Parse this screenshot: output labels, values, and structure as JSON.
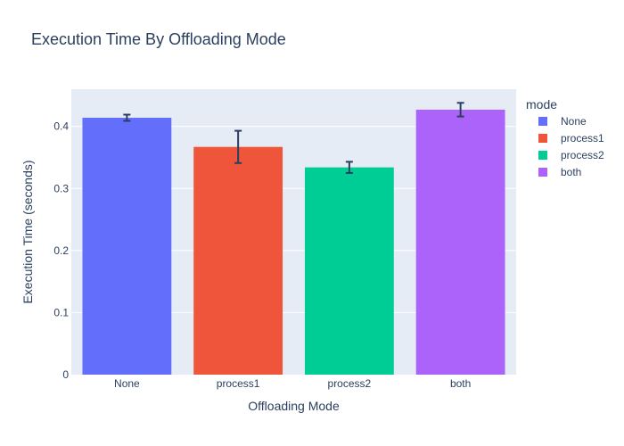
{
  "chart_data": {
    "type": "bar",
    "title": "Execution Time By Offloading Mode",
    "xlabel": "Offloading Mode",
    "ylabel": "Execution Time (seconds)",
    "categories": [
      "None",
      "process1",
      "process2",
      "both"
    ],
    "values": [
      0.414,
      0.367,
      0.334,
      0.427
    ],
    "errors": [
      0.005,
      0.026,
      0.009,
      0.011
    ],
    "colors": [
      "#636efa",
      "#ef553b",
      "#00cc96",
      "#ab63fa"
    ],
    "ylim": [
      0,
      0.46
    ],
    "yticks": [
      0,
      0.1,
      0.2,
      0.3,
      0.4
    ],
    "ytick_labels": [
      "0",
      "0.1",
      "0.2",
      "0.3",
      "0.4"
    ],
    "grid": true,
    "legend": {
      "title": "mode",
      "placement": "right",
      "entries": [
        {
          "label": "None",
          "color": "#636efa"
        },
        {
          "label": "process1",
          "color": "#ef553b"
        },
        {
          "label": "process2",
          "color": "#00cc96"
        },
        {
          "label": "both",
          "color": "#ab63fa"
        }
      ]
    },
    "plot_background": "#e5ecf6",
    "error_bar_color": "#2a3f5f"
  }
}
